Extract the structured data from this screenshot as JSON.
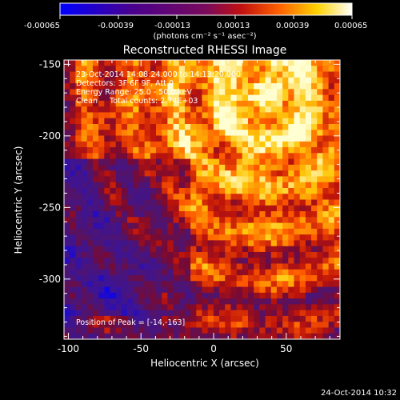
{
  "colorbar": {
    "ticks": [
      "-0.00065",
      "-0.00039",
      "-0.00013",
      "0.00013",
      "0.00039",
      "0.00065"
    ],
    "unit_label": "(photons cm⁻² s⁻¹ asec⁻²)",
    "colormap": [
      "#0000ff",
      "#4a008c",
      "#7a0a5c",
      "#c01010",
      "#ff6000",
      "#ffd200",
      "#ffffff"
    ]
  },
  "plot": {
    "title": "Reconstructed RHESSI Image",
    "xlabel": "Heliocentric X (arcsec)",
    "ylabel": "Heliocentric Y (arcsec)",
    "xlim": [
      -103,
      87
    ],
    "ylim": [
      -342,
      -147
    ],
    "xticks": [
      "-100",
      "-50",
      "0",
      "50"
    ],
    "xtick_values": [
      -100,
      -50,
      0,
      50
    ],
    "yticks": [
      "-150",
      "-200",
      "-250",
      "-300"
    ],
    "ytick_values": [
      -150,
      -200,
      -250,
      -300
    ],
    "annotations": {
      "line1": "23-Oct-2014 14:08:24.000 to 14:13:20.000",
      "line2": "Detectors: 3F 6F 9F, Att 0",
      "line3": "Energy Range: 25.0 - 50.0 keV",
      "line4": "Clean     Total counts: 2.74E+03",
      "peak": "Position of Peak = [-14,-163]"
    }
  },
  "footer": {
    "timestamp": "24-Oct-2014 10:32"
  }
}
